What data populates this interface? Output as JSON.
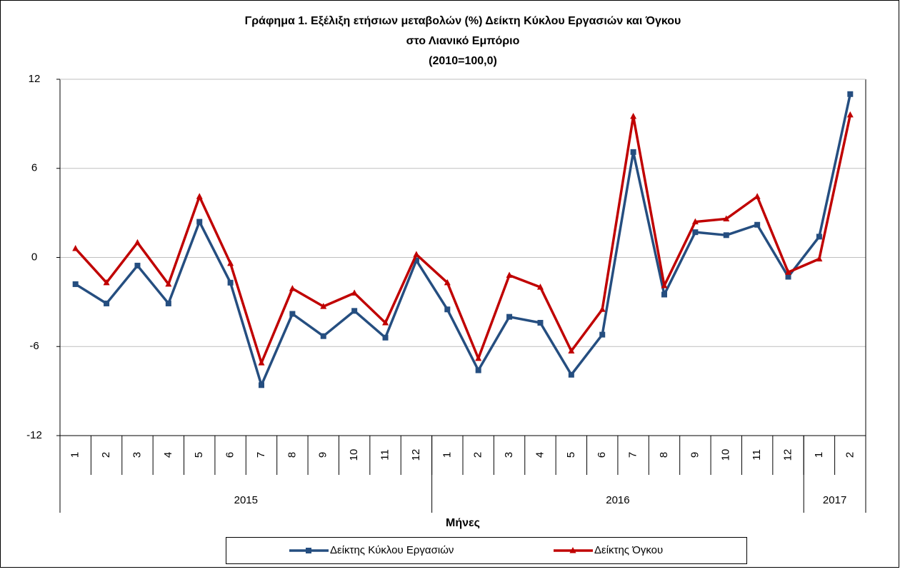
{
  "chart_data": {
    "type": "line",
    "title": [
      "Γράφημα 1. Εξέλιξη ετήσιων μεταβολών (%) Δείκτη Κύκλου Εργασιών και Όγκου",
      "στο Λιανικό Εμπόριο",
      "(2010=100,0)"
    ],
    "x_label": "Μήνες",
    "categories": [
      "1",
      "2",
      "3",
      "4",
      "5",
      "6",
      "7",
      "8",
      "9",
      "10",
      "11",
      "12",
      "1",
      "2",
      "3",
      "4",
      "5",
      "6",
      "7",
      "8",
      "9",
      "10",
      "11",
      "12",
      "1",
      "2"
    ],
    "years": [
      "2015",
      "2016",
      "2017"
    ],
    "series": [
      {
        "name": "Δείκτης Κύκλου Εργασιών",
        "color": "#254e80",
        "marker": "square",
        "values": [
          -1.8,
          -3.1,
          -0.55,
          -3.1,
          2.4,
          -1.7,
          -8.6,
          -3.8,
          -5.3,
          -3.6,
          -5.4,
          -0.2,
          -3.5,
          -7.6,
          -4.0,
          -4.4,
          -7.9,
          -5.2,
          7.1,
          -2.5,
          1.7,
          1.5,
          2.2,
          -1.3,
          1.4,
          11.0
        ]
      },
      {
        "name": "Δείκτης Όγκου",
        "color": "#c00000",
        "marker": "triangle",
        "values": [
          0.6,
          -1.7,
          1.0,
          -1.8,
          4.1,
          -0.4,
          -7.1,
          -2.1,
          -3.3,
          -2.4,
          -4.4,
          0.2,
          -1.7,
          -6.8,
          -1.2,
          -2.0,
          -6.3,
          -3.5,
          9.5,
          -1.9,
          2.4,
          2.6,
          4.1,
          -1.0,
          -0.1,
          9.6
        ]
      }
    ],
    "ylim": [
      -12,
      12
    ],
    "yticks": [
      -12,
      -6,
      0,
      6,
      12
    ],
    "grid": true,
    "legend": "bottom"
  }
}
